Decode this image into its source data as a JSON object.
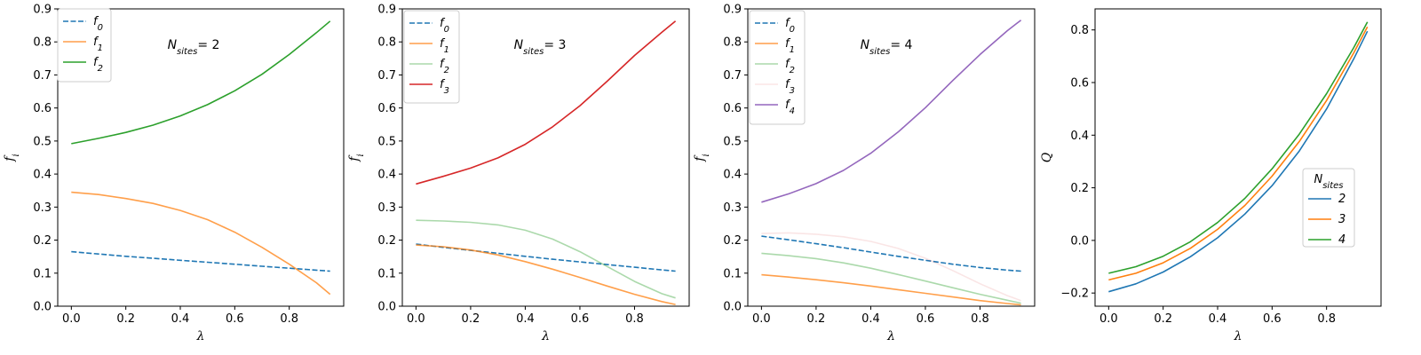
{
  "chart_data": [
    {
      "type": "line",
      "xlabel": "λ",
      "ylabel": "f_i",
      "xlim": [
        -0.05,
        1.0
      ],
      "ylim": [
        0.0,
        0.9
      ],
      "xticks": [
        "0.0",
        "0.2",
        "0.4",
        "0.6",
        "0.8"
      ],
      "yticks": [
        "0.0",
        "0.1",
        "0.2",
        "0.3",
        "0.4",
        "0.5",
        "0.6",
        "0.7",
        "0.8",
        "0.9"
      ],
      "annotation": "N_sites = 2",
      "legend": "top-left",
      "x": [
        0.0,
        0.1,
        0.2,
        0.3,
        0.4,
        0.5,
        0.6,
        0.7,
        0.8,
        0.9,
        0.95
      ],
      "series": [
        {
          "name": "f_0",
          "color": "#1f77b4",
          "dashed": true,
          "alpha": 1.0,
          "values": [
            0.165,
            0.158,
            0.151,
            0.145,
            0.139,
            0.133,
            0.127,
            0.121,
            0.115,
            0.109,
            0.106
          ]
        },
        {
          "name": "f_1",
          "color": "#ff7f0e",
          "dashed": false,
          "alpha": 0.75,
          "values": [
            0.345,
            0.338,
            0.326,
            0.311,
            0.29,
            0.262,
            0.224,
            0.178,
            0.127,
            0.071,
            0.036
          ]
        },
        {
          "name": "f_2",
          "color": "#2ca02c",
          "dashed": false,
          "alpha": 1.0,
          "values": [
            0.492,
            0.508,
            0.526,
            0.548,
            0.576,
            0.61,
            0.652,
            0.702,
            0.762,
            0.828,
            0.863
          ]
        }
      ]
    },
    {
      "type": "line",
      "xlabel": "λ",
      "ylabel": "f_i",
      "xlim": [
        -0.05,
        1.0
      ],
      "ylim": [
        0.0,
        0.9
      ],
      "xticks": [
        "0.0",
        "0.2",
        "0.4",
        "0.6",
        "0.8"
      ],
      "yticks": [
        "0.0",
        "0.1",
        "0.2",
        "0.3",
        "0.4",
        "0.5",
        "0.6",
        "0.7",
        "0.8",
        "0.9"
      ],
      "annotation": "N_sites = 3",
      "legend": "top-left",
      "x": [
        0.0,
        0.1,
        0.2,
        0.3,
        0.4,
        0.5,
        0.6,
        0.7,
        0.8,
        0.9,
        0.95
      ],
      "series": [
        {
          "name": "f_0",
          "color": "#1f77b4",
          "dashed": true,
          "alpha": 1.0,
          "values": [
            0.188,
            0.178,
            0.169,
            0.16,
            0.151,
            0.142,
            0.134,
            0.126,
            0.118,
            0.11,
            0.106
          ]
        },
        {
          "name": "f_1",
          "color": "#ff7f0e",
          "dashed": false,
          "alpha": 0.75,
          "values": [
            0.185,
            0.18,
            0.17,
            0.155,
            0.135,
            0.112,
            0.087,
            0.061,
            0.036,
            0.014,
            0.005
          ]
        },
        {
          "name": "f_2",
          "color": "#2ca02c",
          "dashed": false,
          "alpha": 0.4,
          "values": [
            0.26,
            0.258,
            0.254,
            0.246,
            0.23,
            0.203,
            0.165,
            0.12,
            0.075,
            0.038,
            0.025
          ]
        },
        {
          "name": "f_3",
          "color": "#d62728",
          "dashed": false,
          "alpha": 1.0,
          "values": [
            0.37,
            0.393,
            0.418,
            0.449,
            0.49,
            0.543,
            0.607,
            0.681,
            0.759,
            0.829,
            0.863
          ]
        }
      ]
    },
    {
      "type": "line",
      "xlabel": "λ",
      "ylabel": "f_i",
      "xlim": [
        -0.05,
        1.0
      ],
      "ylim": [
        0.0,
        0.9
      ],
      "xticks": [
        "0.0",
        "0.2",
        "0.4",
        "0.6",
        "0.8"
      ],
      "yticks": [
        "0.0",
        "0.1",
        "0.2",
        "0.3",
        "0.4",
        "0.5",
        "0.6",
        "0.7",
        "0.8",
        "0.9"
      ],
      "annotation": "N_sites = 4",
      "legend": "top-left",
      "x": [
        0.0,
        0.1,
        0.2,
        0.3,
        0.4,
        0.5,
        0.6,
        0.7,
        0.8,
        0.9,
        0.95
      ],
      "series": [
        {
          "name": "f_0",
          "color": "#1f77b4",
          "dashed": true,
          "alpha": 1.0,
          "values": [
            0.212,
            0.201,
            0.189,
            0.177,
            0.164,
            0.151,
            0.139,
            0.127,
            0.117,
            0.109,
            0.106
          ]
        },
        {
          "name": "f_1",
          "color": "#ff7f0e",
          "dashed": false,
          "alpha": 0.75,
          "values": [
            0.095,
            0.088,
            0.08,
            0.071,
            0.061,
            0.05,
            0.039,
            0.028,
            0.017,
            0.008,
            0.004
          ]
        },
        {
          "name": "f_2",
          "color": "#2ca02c",
          "dashed": false,
          "alpha": 0.4,
          "values": [
            0.16,
            0.153,
            0.144,
            0.131,
            0.115,
            0.096,
            0.076,
            0.056,
            0.036,
            0.018,
            0.009
          ]
        },
        {
          "name": "f_3",
          "color": "#d62728",
          "dashed": false,
          "alpha": 0.12,
          "values": [
            0.22,
            0.222,
            0.218,
            0.21,
            0.196,
            0.175,
            0.145,
            0.108,
            0.068,
            0.032,
            0.017
          ]
        },
        {
          "name": "f_4",
          "color": "#9467bd",
          "dashed": false,
          "alpha": 1.0,
          "values": [
            0.315,
            0.34,
            0.371,
            0.411,
            0.463,
            0.527,
            0.601,
            0.683,
            0.762,
            0.834,
            0.866
          ]
        }
      ]
    },
    {
      "type": "line",
      "xlabel": "λ",
      "ylabel": "Q",
      "xlim": [
        -0.05,
        1.0
      ],
      "ylim": [
        -0.25,
        0.88
      ],
      "xticks": [
        "0.0",
        "0.2",
        "0.4",
        "0.6",
        "0.8"
      ],
      "yticks": [
        "−0.2",
        "0.0",
        "0.2",
        "0.4",
        "0.6",
        "0.8"
      ],
      "legend": "center-right",
      "legend_title": "N_sites",
      "x": [
        0.0,
        0.1,
        0.2,
        0.3,
        0.4,
        0.5,
        0.6,
        0.7,
        0.8,
        0.9,
        0.95
      ],
      "series": [
        {
          "name": "2",
          "color": "#1f77b4",
          "dashed": false,
          "alpha": 1.0,
          "values": [
            -0.195,
            -0.165,
            -0.12,
            -0.062,
            0.01,
            0.1,
            0.208,
            0.34,
            0.5,
            0.69,
            0.795
          ]
        },
        {
          "name": "3",
          "color": "#ff7f0e",
          "dashed": false,
          "alpha": 1.0,
          "values": [
            -0.15,
            -0.125,
            -0.085,
            -0.03,
            0.042,
            0.133,
            0.244,
            0.376,
            0.532,
            0.713,
            0.812
          ]
        },
        {
          "name": "4",
          "color": "#2ca02c",
          "dashed": false,
          "alpha": 1.0,
          "values": [
            -0.125,
            -0.1,
            -0.06,
            -0.005,
            0.068,
            0.16,
            0.272,
            0.404,
            0.558,
            0.733,
            0.83
          ]
        }
      ]
    }
  ]
}
